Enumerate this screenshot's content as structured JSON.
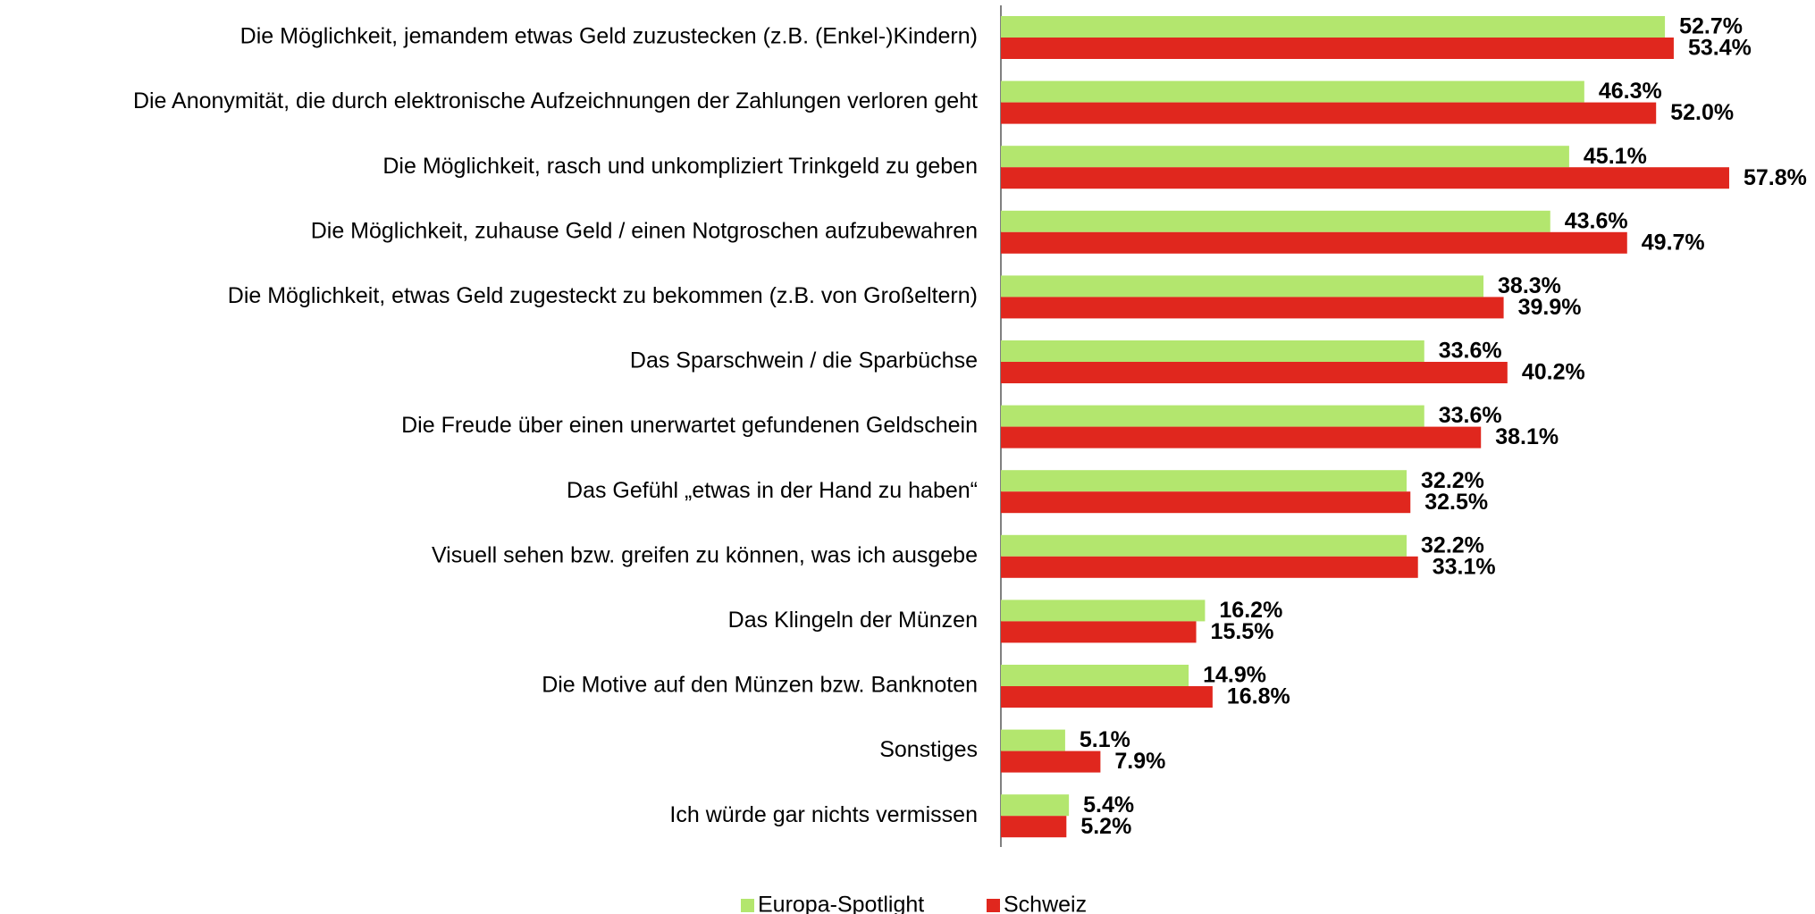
{
  "chart_data": {
    "type": "bar",
    "orientation": "horizontal",
    "categories": [
      "Die Möglichkeit, jemandem etwas Geld zuzustecken (z.B. (Enkel-)Kindern)",
      "Die Anonymität, die durch elektronische Aufzeichnungen der Zahlungen verloren geht",
      "Die Möglichkeit, rasch und unkompliziert Trinkgeld zu geben",
      "Die Möglichkeit, zuhause Geld / einen Notgroschen aufzubewahren",
      "Die Möglichkeit, etwas Geld zugesteckt zu bekommen (z.B. von Großeltern)",
      "Das Sparschwein / die Sparbüchse",
      "Die Freude über einen unerwartet gefundenen Geldschein",
      "Das Gefühl „etwas in der Hand zu haben“",
      "Visuell sehen bzw. greifen zu können, was ich ausgebe",
      "Das Klingeln der Münzen",
      "Die Motive auf den Münzen bzw. Banknoten",
      "Sonstiges",
      "Ich würde gar nichts vermissen"
    ],
    "series": [
      {
        "name": "Europa-Spotlight",
        "color": "#b3e66e",
        "values": [
          52.7,
          46.3,
          45.1,
          43.6,
          38.3,
          33.6,
          33.6,
          32.2,
          32.2,
          16.2,
          14.9,
          5.1,
          5.4
        ],
        "value_labels": [
          "52.7%",
          "46.3%",
          "45.1%",
          "43.6%",
          "38.3%",
          "33.6%",
          "33.6%",
          "32.2%",
          "32.2%",
          "16.2%",
          "14.9%",
          "5.1%",
          "5.4%"
        ]
      },
      {
        "name": "Schweiz",
        "color": "#e0271e",
        "values": [
          53.4,
          52.0,
          57.8,
          49.7,
          39.9,
          40.2,
          38.1,
          32.5,
          33.1,
          15.5,
          16.8,
          7.9,
          5.2
        ],
        "value_labels": [
          "53.4%",
          "52.0%",
          "57.8%",
          "49.7%",
          "39.9%",
          "40.2%",
          "38.1%",
          "32.5%",
          "33.1%",
          "15.5%",
          "16.8%",
          "7.9%",
          "5.2%"
        ]
      }
    ],
    "legend": "bottom"
  }
}
